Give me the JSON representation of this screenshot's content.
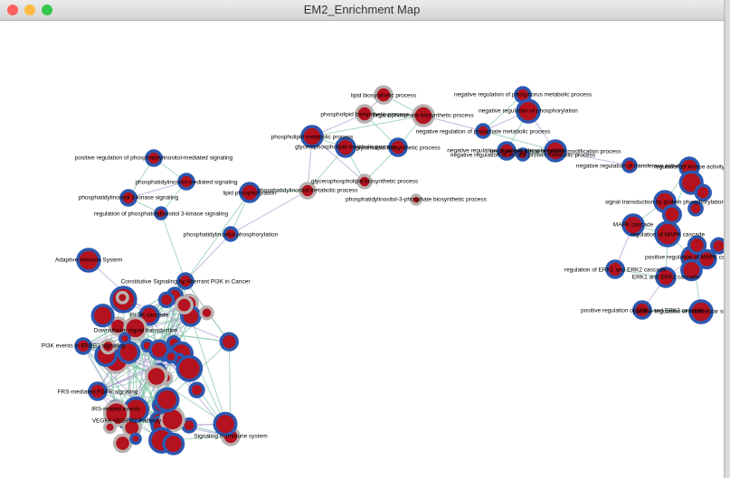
{
  "window": {
    "title": "EM2_Enrichment Map"
  },
  "nodes": [
    {
      "label": "lipid biosynthetic process"
    },
    {
      "label": "negative regulation of phosphorus metabolic process"
    },
    {
      "label": "phospholipid biosynthetic process"
    },
    {
      "label": "organophosphate biosynthetic process"
    },
    {
      "label": "negative regulation of phosphate metabolic process"
    },
    {
      "label": "negative regulation of phosphorylation"
    },
    {
      "label": "phospholipid metabolic process"
    },
    {
      "label": "glycerophospholipid metabolic process"
    },
    {
      "label": "glycerolipid biosynthetic process"
    },
    {
      "label": "negative regulation of protein phosphorylation"
    },
    {
      "label": "negative regulation of protein modification process"
    },
    {
      "label": "glycerophospholipid biosynthetic process"
    },
    {
      "label": "lipid phosphorylation"
    },
    {
      "label": "phosphatidylinositol metabolic process"
    },
    {
      "label": "negative regulation of cellular protein metabolic process"
    },
    {
      "label": "phosphatidylinositol-3-phosphate biosynthetic process"
    },
    {
      "label": "phosphatidylinositol phosphorylation"
    },
    {
      "label": "positive regulation of phosphatidylinositol-mediated signaling"
    },
    {
      "label": "phosphatidylinositol-mediated signaling"
    },
    {
      "label": "phosphatidylinositol 3-kinase signaling"
    },
    {
      "label": "regulation of phosphatidylinositol 3-kinase signaling"
    },
    {
      "label": "Adaptive Immune System"
    },
    {
      "label": "Constitutive Signaling by Aberrant PI3K in Cancer"
    },
    {
      "label": "PI-3K cascade"
    },
    {
      "label": "Downstream signal transduction"
    },
    {
      "label": "PI3K events in ERBB2 signaling"
    },
    {
      "label": "FRS-mediated FGFR signaling"
    },
    {
      "label": "IRS-related events"
    },
    {
      "label": "VEGFA-VEGFR2 Pathway"
    },
    {
      "label": "Signaling in Immune system"
    },
    {
      "label": "negative regulation of transferase activity"
    },
    {
      "label": "regulation of kinase activity"
    },
    {
      "label": "signal transduction by protein phosphorylation"
    },
    {
      "label": "MAPK cascade"
    },
    {
      "label": "regulation of MAPK cascade"
    },
    {
      "label": "positive regulation of MAPK cascade"
    },
    {
      "label": "regulation of ERK1 and ERK2 cascade"
    },
    {
      "label": "ERK1 and ERK2 cascade"
    },
    {
      "label": "positive regulation of ERK1 and ERK2 cascade"
    },
    {
      "label": "positive regulation of intracellular signal transduction"
    }
  ]
}
